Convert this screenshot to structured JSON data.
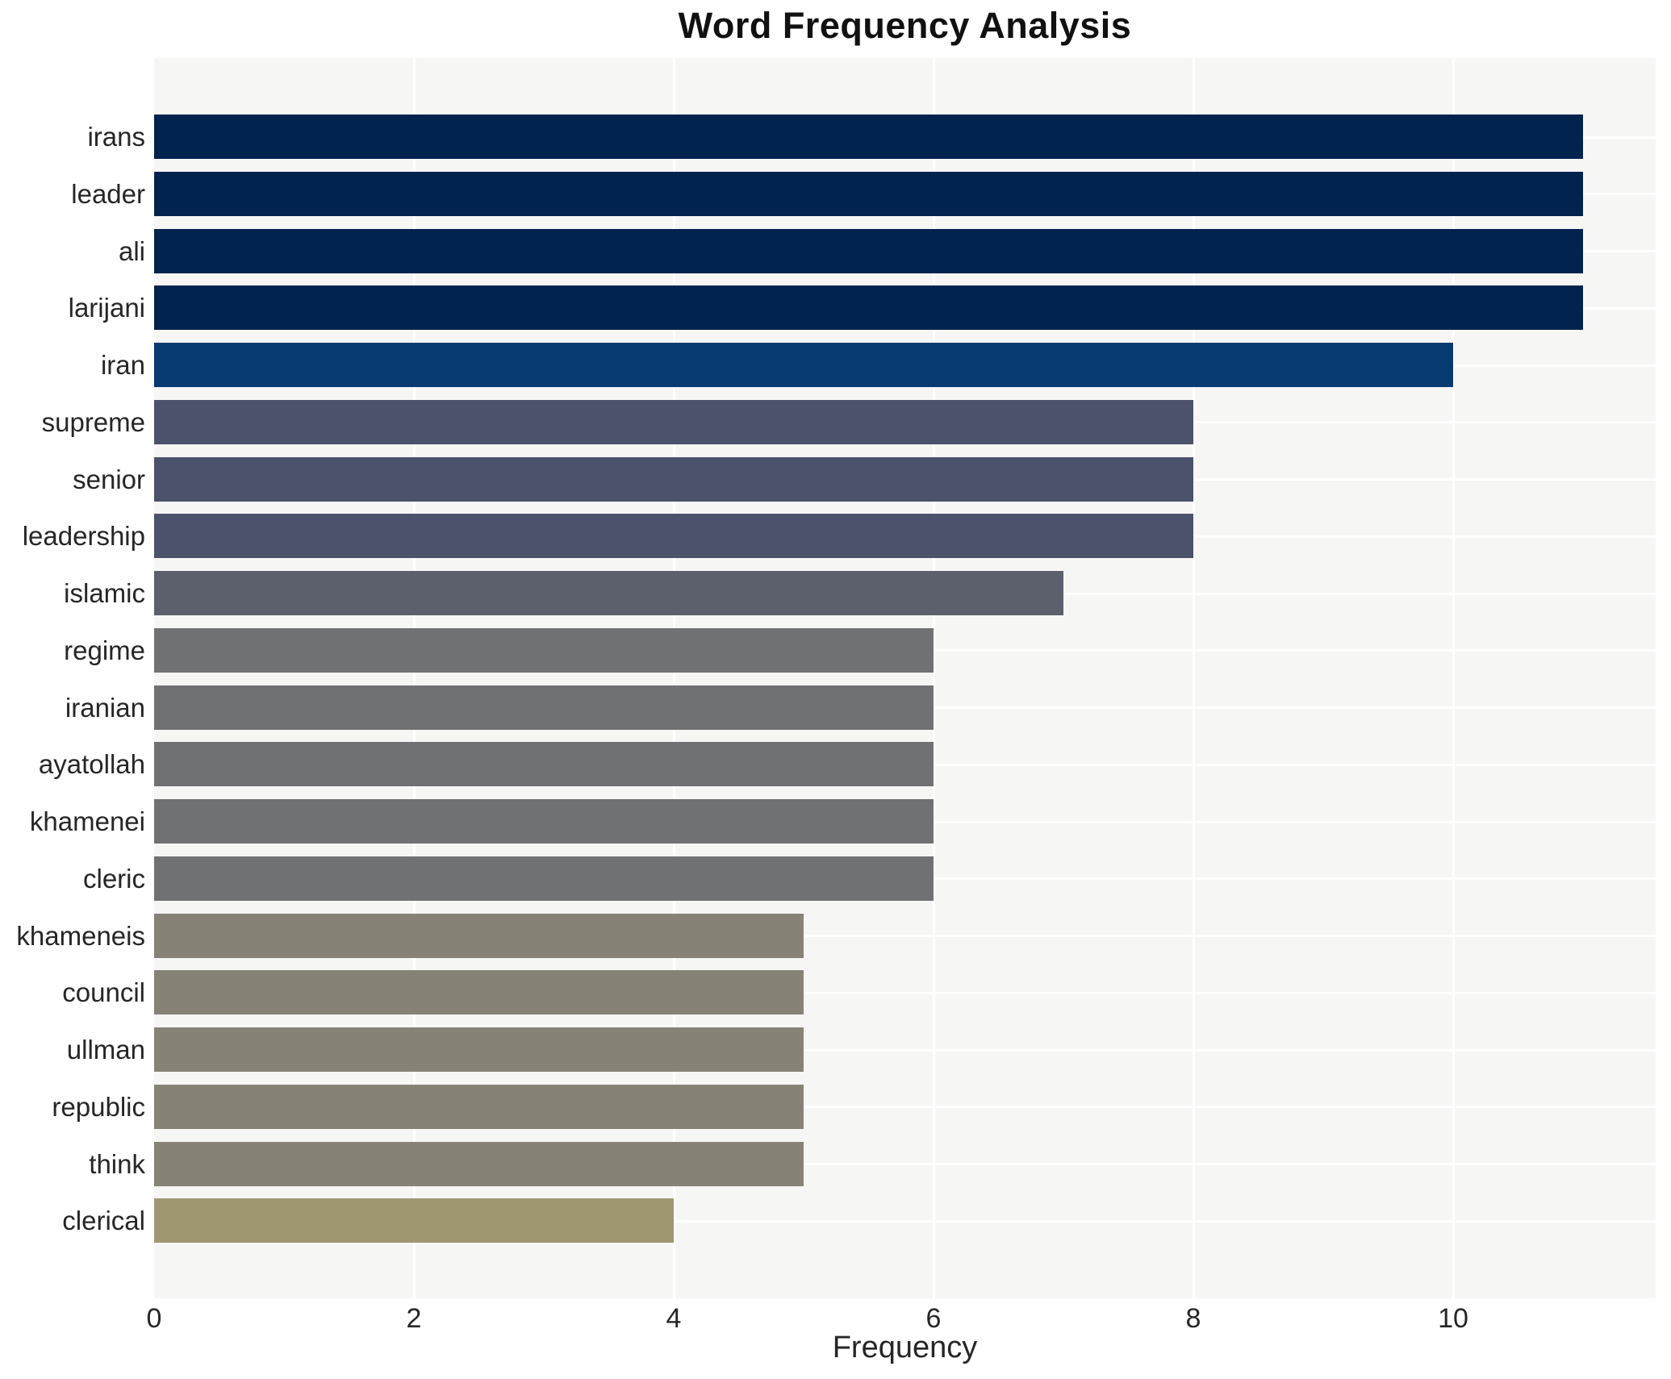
{
  "chart_data": {
    "type": "bar",
    "orientation": "horizontal",
    "title": "Word Frequency Analysis",
    "xlabel": "Frequency",
    "ylabel": "",
    "categories": [
      "irans",
      "leader",
      "ali",
      "larijani",
      "iran",
      "supreme",
      "senior",
      "leadership",
      "islamic",
      "regime",
      "iranian",
      "ayatollah",
      "khamenei",
      "cleric",
      "khameneis",
      "council",
      "ullman",
      "republic",
      "think",
      "clerical"
    ],
    "values": [
      11,
      11,
      11,
      11,
      10,
      8,
      8,
      8,
      7,
      6,
      6,
      6,
      6,
      6,
      5,
      5,
      5,
      5,
      5,
      4
    ],
    "bar_colors": [
      "#02234e",
      "#02234e",
      "#02234e",
      "#02234e",
      "#073a71",
      "#4a526c",
      "#4a526c",
      "#4a526c",
      "#5c606d",
      "#707172",
      "#707172",
      "#707172",
      "#707172",
      "#707172",
      "#868376",
      "#868376",
      "#868376",
      "#868376",
      "#868376",
      "#9f9772"
    ],
    "xticks": [
      0,
      2,
      4,
      6,
      8,
      10
    ],
    "xlim": [
      0,
      11.56
    ],
    "grid": true,
    "legend_position": "none",
    "plot_background": "#f6f6f5",
    "gridline_color": "#ffffff",
    "text_color": "#262626"
  }
}
